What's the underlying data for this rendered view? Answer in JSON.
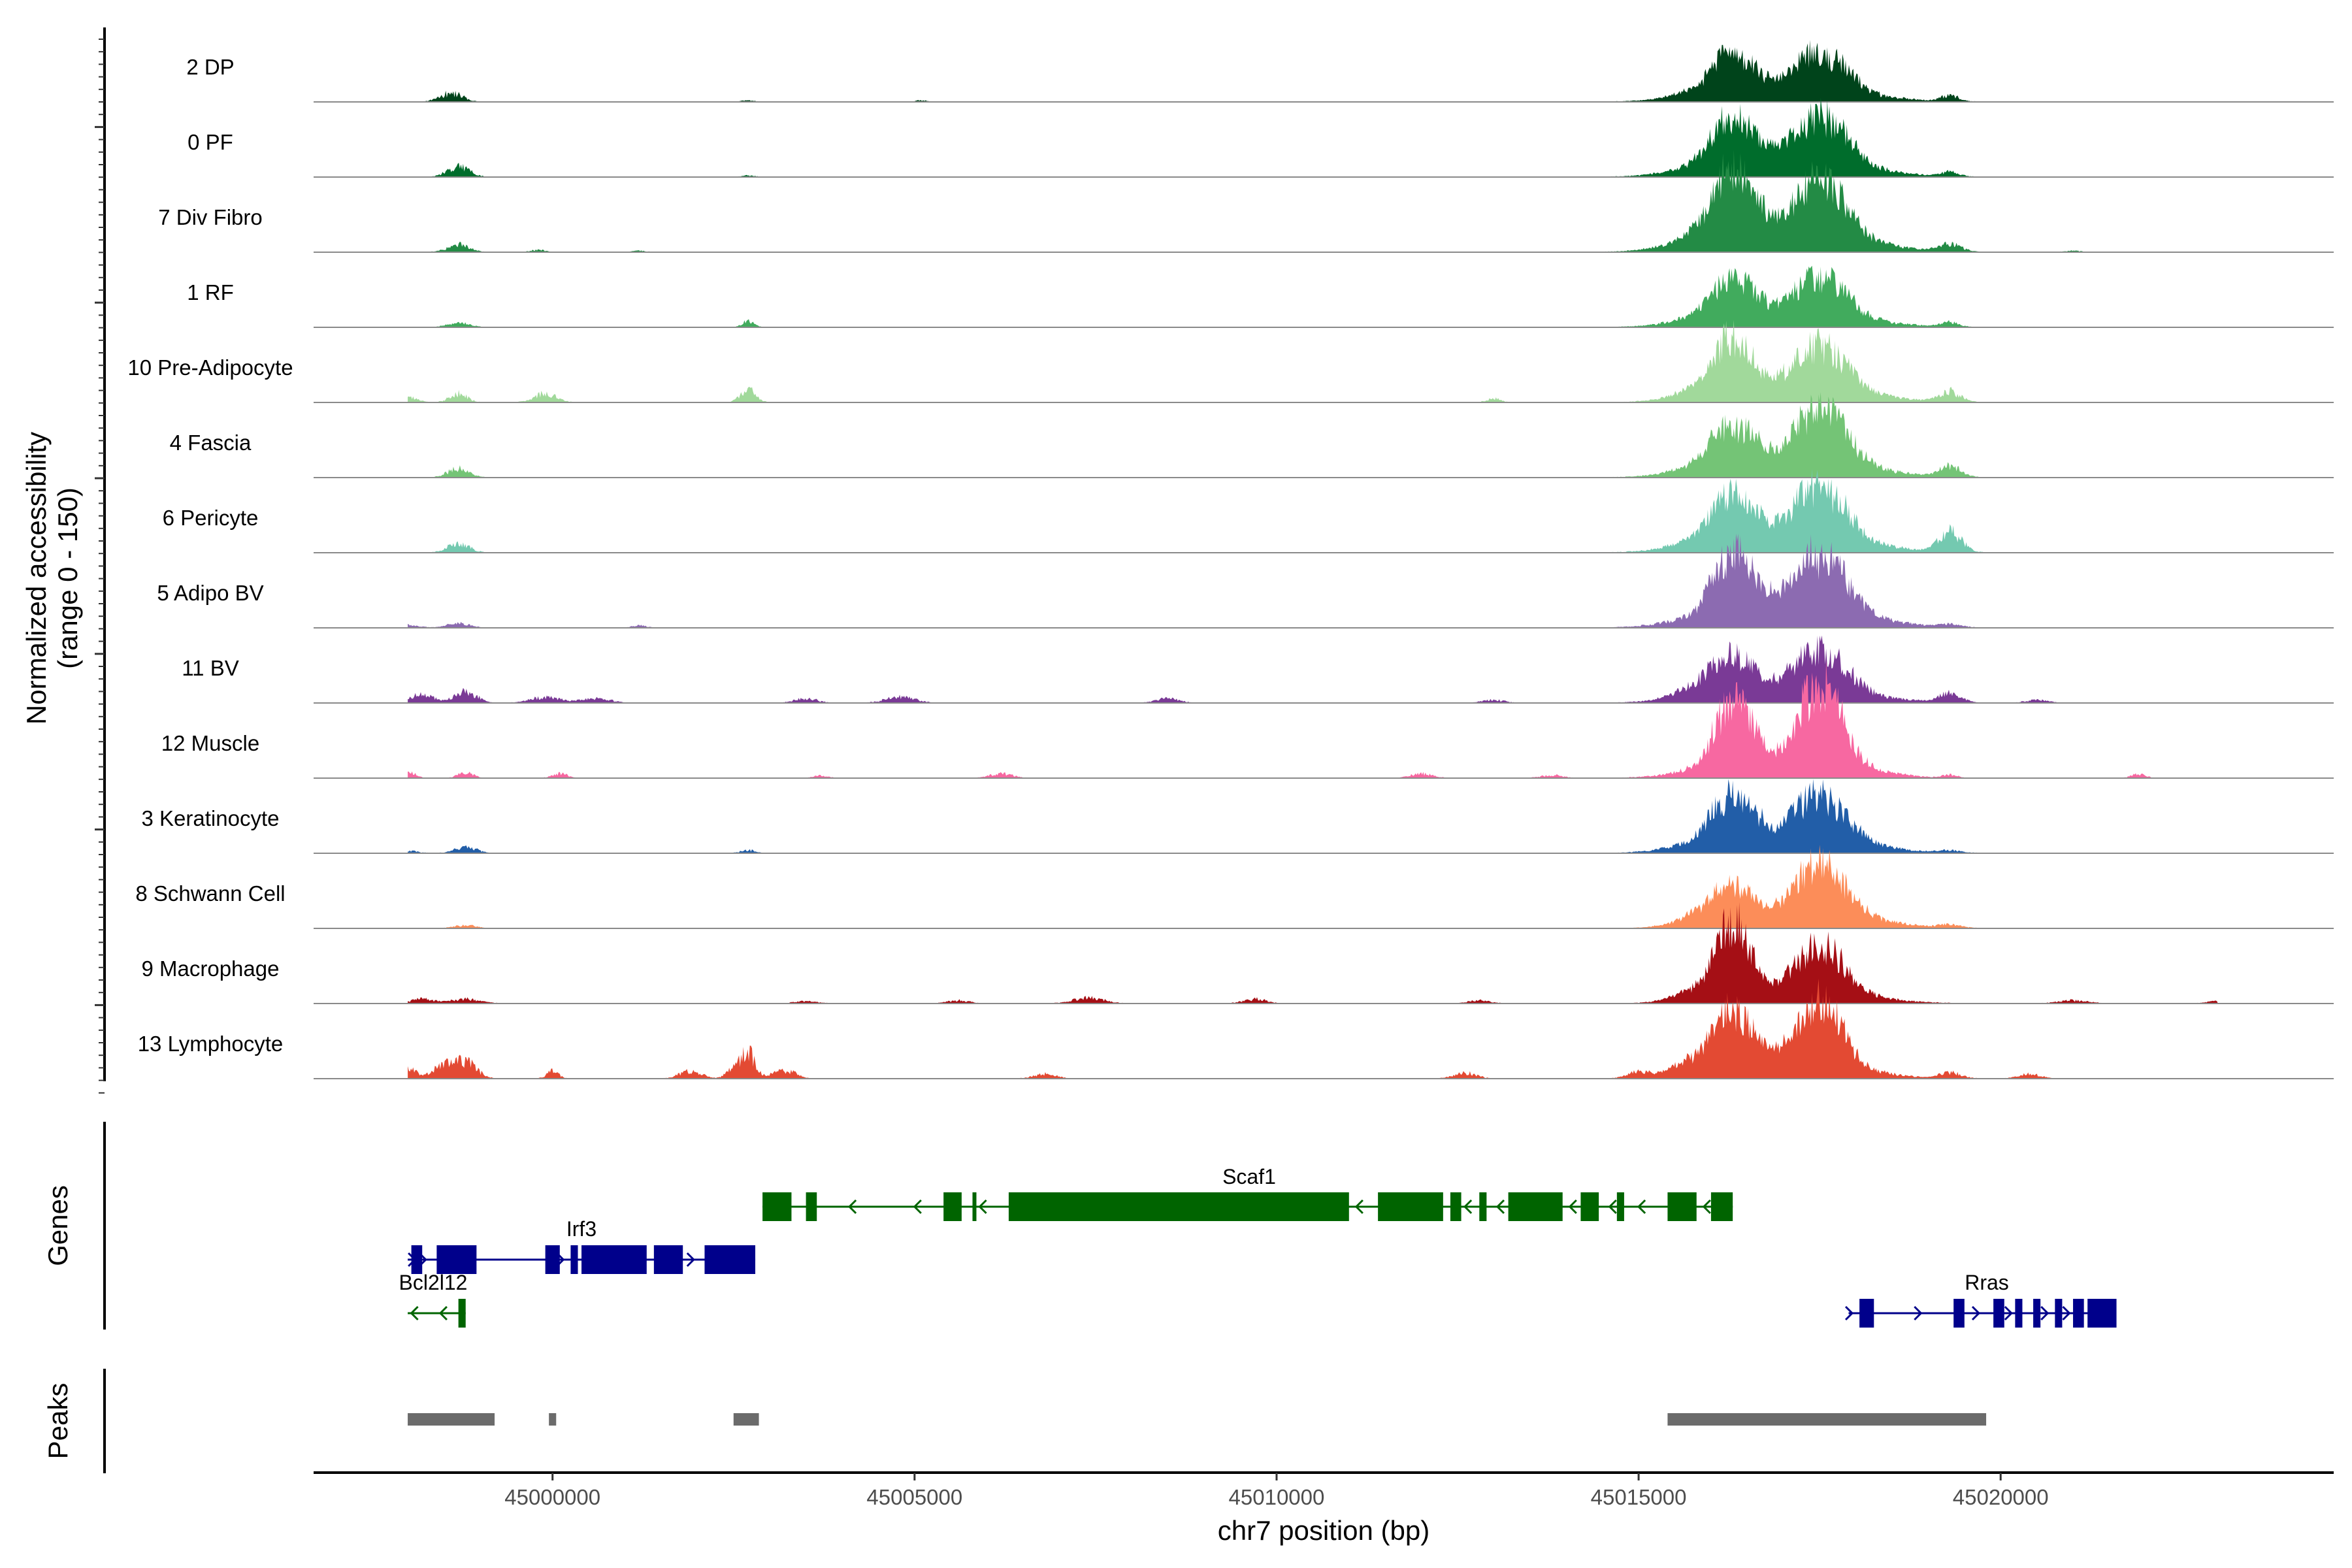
{
  "chart_data": {
    "type": "area",
    "title": "",
    "ylabel_line1": "Normalized accessibility",
    "ylabel_line2": "(range 0 - 150)",
    "ylim": [
      0,
      150
    ],
    "xlabel": "chr7 position (bp)",
    "xlim": [
      44996700,
      45024600
    ],
    "x_ticks": [
      45000000,
      45005000,
      45010000,
      45015000,
      45020000
    ],
    "x_tick_labels": [
      "45000000",
      "45005000",
      "45010000",
      "45015000",
      "45020000"
    ],
    "tracks": [
      {
        "name": "2 DP",
        "color": "#00441b",
        "small_peaks": [
          [
            44998600,
            12,
            150
          ],
          [
            45002700,
            2,
            80
          ],
          [
            45005100,
            2,
            80
          ],
          [
            45019300,
            8,
            120
          ],
          [
            45015800,
            6,
            300
          ]
        ],
        "main_peaks": [
          [
            45016300,
            38,
            450
          ],
          [
            45017500,
            42,
            550
          ]
        ]
      },
      {
        "name": "0 PF",
        "color": "#006d2c",
        "small_peaks": [
          [
            44998700,
            14,
            150
          ],
          [
            45002700,
            2,
            80
          ],
          [
            45019300,
            6,
            120
          ],
          [
            45015800,
            5,
            300
          ]
        ],
        "main_peaks": [
          [
            45016300,
            48,
            450
          ],
          [
            45017500,
            52,
            550
          ]
        ]
      },
      {
        "name": "7 Div Fibro",
        "color": "#238b45",
        "small_peaks": [
          [
            44998700,
            10,
            150
          ],
          [
            44999800,
            3,
            100
          ],
          [
            45001200,
            2,
            80
          ],
          [
            45019300,
            10,
            150
          ],
          [
            45015800,
            8,
            300
          ],
          [
            45021000,
            2,
            100
          ]
        ],
        "main_peaks": [
          [
            45016300,
            68,
            450
          ],
          [
            45017500,
            60,
            550
          ]
        ]
      },
      {
        "name": "1 RF",
        "color": "#41ab5d",
        "small_peaks": [
          [
            44998700,
            6,
            150
          ],
          [
            45002700,
            8,
            80
          ],
          [
            45019300,
            6,
            120
          ],
          [
            45015800,
            4,
            300
          ]
        ],
        "main_peaks": [
          [
            45016300,
            40,
            450
          ],
          [
            45017500,
            42,
            550
          ]
        ]
      },
      {
        "name": "10 Pre-Adipocyte",
        "color": "#a1d99b",
        "small_peaks": [
          [
            44998000,
            8,
            120
          ],
          [
            44998700,
            12,
            120
          ],
          [
            44999900,
            12,
            150
          ],
          [
            45002700,
            18,
            100
          ],
          [
            45013000,
            5,
            100
          ],
          [
            45015800,
            8,
            300
          ],
          [
            45019300,
            14,
            150
          ]
        ],
        "main_peaks": [
          [
            45016300,
            52,
            400
          ],
          [
            45017500,
            48,
            550
          ]
        ]
      },
      {
        "name": "4 Fascia",
        "color": "#74c476",
        "small_peaks": [
          [
            44998700,
            12,
            150
          ],
          [
            45019300,
            14,
            150
          ],
          [
            45015800,
            6,
            300
          ]
        ],
        "main_peaks": [
          [
            45016300,
            42,
            450
          ],
          [
            45017500,
            58,
            550
          ]
        ]
      },
      {
        "name": "6 Pericyte",
        "color": "#74c9b0",
        "small_peaks": [
          [
            44998700,
            12,
            150
          ],
          [
            45019300,
            30,
            150
          ],
          [
            45015800,
            6,
            300
          ]
        ],
        "main_peaks": [
          [
            45016300,
            48,
            450
          ],
          [
            45017500,
            55,
            550
          ]
        ]
      },
      {
        "name": "5 Adipo BV",
        "color": "#8c6bb1",
        "small_peaks": [
          [
            44998000,
            4,
            150
          ],
          [
            44998700,
            6,
            150
          ],
          [
            45001200,
            3,
            100
          ],
          [
            45019300,
            4,
            150
          ]
        ],
        "main_peaks": [
          [
            45016300,
            60,
            450
          ],
          [
            45017500,
            62,
            550
          ]
        ]
      },
      {
        "name": "11 BV",
        "color": "#7a3a96",
        "small_peaks": [
          [
            44998200,
            12,
            150
          ],
          [
            44998800,
            16,
            150
          ],
          [
            44999900,
            8,
            200
          ],
          [
            45000600,
            6,
            200
          ],
          [
            45003500,
            6,
            150
          ],
          [
            45004800,
            8,
            200
          ],
          [
            45008500,
            6,
            150
          ],
          [
            45013000,
            4,
            150
          ],
          [
            45015800,
            12,
            300
          ],
          [
            45019300,
            12,
            150
          ],
          [
            45020500,
            4,
            150
          ]
        ],
        "main_peaks": [
          [
            45016300,
            38,
            450
          ],
          [
            45017500,
            45,
            550
          ]
        ]
      },
      {
        "name": "12 Muscle",
        "color": "#f768a1",
        "small_peaks": [
          [
            44998000,
            10,
            100
          ],
          [
            44998800,
            8,
            100
          ],
          [
            45000100,
            6,
            100
          ],
          [
            45003700,
            3,
            100
          ],
          [
            45006200,
            6,
            150
          ],
          [
            45012000,
            6,
            150
          ],
          [
            45013800,
            4,
            150
          ],
          [
            45019300,
            4,
            100
          ],
          [
            45021900,
            5,
            100
          ]
        ],
        "main_peaks": [
          [
            45016300,
            62,
            400
          ],
          [
            45017500,
            80,
            450
          ]
        ]
      },
      {
        "name": "3 Keratinocyte",
        "color": "#225ea8",
        "small_peaks": [
          [
            44998000,
            3,
            150
          ],
          [
            44998800,
            8,
            150
          ],
          [
            45002700,
            4,
            100
          ],
          [
            45015800,
            4,
            300
          ],
          [
            45019300,
            3,
            150
          ]
        ],
        "main_peaks": [
          [
            45016300,
            48,
            450
          ],
          [
            45017500,
            48,
            550
          ]
        ]
      },
      {
        "name": "8 Schwann Cell",
        "color": "#fc8d59",
        "small_peaks": [
          [
            44998800,
            4,
            150
          ],
          [
            45015900,
            15,
            300
          ],
          [
            45019300,
            4,
            150
          ]
        ],
        "main_peaks": [
          [
            45016300,
            30,
            400
          ],
          [
            45017500,
            55,
            550
          ]
        ]
      },
      {
        "name": "9 Macrophage",
        "color": "#a50f15",
        "small_peaks": [
          [
            44998200,
            6,
            150
          ],
          [
            44998800,
            6,
            200
          ],
          [
            45003500,
            3,
            150
          ],
          [
            45005600,
            4,
            150
          ],
          [
            45007400,
            8,
            200
          ],
          [
            45009700,
            6,
            150
          ],
          [
            45012800,
            4,
            150
          ],
          [
            45015800,
            8,
            300
          ],
          [
            45021000,
            4,
            200
          ],
          [
            45023000,
            3,
            150
          ]
        ],
        "main_peaks": [
          [
            45016300,
            68,
            350
          ],
          [
            45017500,
            50,
            500
          ]
        ]
      },
      {
        "name": "13 Lymphocyte",
        "color": "#e34a33",
        "small_peaks": [
          [
            44998000,
            16,
            100
          ],
          [
            44998500,
            20,
            150
          ],
          [
            44998800,
            22,
            150
          ],
          [
            45000000,
            10,
            80
          ],
          [
            45001900,
            10,
            150
          ],
          [
            45002500,
            12,
            100
          ],
          [
            45002700,
            35,
            100
          ],
          [
            45003200,
            12,
            150
          ],
          [
            45006800,
            6,
            150
          ],
          [
            45012600,
            8,
            150
          ],
          [
            45015000,
            8,
            150
          ],
          [
            45015800,
            16,
            300
          ],
          [
            45016900,
            12,
            150
          ],
          [
            45019300,
            8,
            150
          ],
          [
            45020400,
            6,
            150
          ]
        ],
        "main_peaks": [
          [
            45016300,
            55,
            400
          ],
          [
            45017500,
            68,
            450
          ]
        ]
      }
    ],
    "genes_label": "Genes",
    "genes": [
      {
        "name": "Scaf1",
        "color": "#006400",
        "strand": "-",
        "start": 45002900,
        "end": 45016300,
        "exons": [
          [
            45002900,
            45003300
          ],
          [
            45003500,
            45003650
          ],
          [
            45005400,
            45005650
          ],
          [
            45005800,
            45005850
          ],
          [
            45006300,
            45011000
          ],
          [
            45011400,
            45012300
          ],
          [
            45012400,
            45012550
          ],
          [
            45012800,
            45012900
          ],
          [
            45013200,
            45013950
          ],
          [
            45014200,
            45014450
          ],
          [
            45014700,
            45014800
          ],
          [
            45015400,
            45015800
          ],
          [
            45016000,
            45016300
          ]
        ],
        "arrows": [
          45004100,
          45005000,
          45005900,
          45011100,
          45012600,
          45013050,
          45014050,
          45014600,
          45015000,
          45015900
        ]
      },
      {
        "name": "Irf3",
        "color": "#00008b",
        "strand": "+",
        "start": 44998000,
        "end": 45002800,
        "exons": [
          [
            44998050,
            44998200
          ],
          [
            44998400,
            44998950
          ],
          [
            44999900,
            45000100
          ],
          [
            45000250,
            45000350
          ],
          [
            45000400,
            45001300
          ],
          [
            45001400,
            45001800
          ],
          [
            45002100,
            45002800
          ]
        ],
        "arrows": [
          44998100,
          44998250,
          45000150,
          45001950
        ]
      },
      {
        "name": "Bcl2l12",
        "color": "#006400",
        "strand": "-",
        "start": 44998000,
        "end": 44998800,
        "exons": [
          [
            44998700,
            44998800
          ]
        ],
        "arrows": [
          44998050,
          44998450
        ]
      },
      {
        "name": "Rras",
        "color": "#00008b",
        "strand": "+",
        "start": 45017900,
        "end": 45021500,
        "exons": [
          [
            45018050,
            45018250
          ],
          [
            45019350,
            45019500
          ],
          [
            45019900,
            45020050
          ],
          [
            45020200,
            45020300
          ],
          [
            45020450,
            45020550
          ],
          [
            45020750,
            45020850
          ],
          [
            45021000,
            45021150
          ],
          [
            45021200,
            45021600
          ]
        ],
        "arrows": [
          45017950,
          45018900,
          45019700,
          45020150,
          45020650,
          45020950
        ]
      }
    ],
    "peaks_label": "Peaks",
    "peaks": [
      [
        44998000,
        44999200
      ],
      [
        44999950,
        45000050
      ],
      [
        45002500,
        45002850
      ],
      [
        45015400,
        45019800
      ]
    ]
  }
}
